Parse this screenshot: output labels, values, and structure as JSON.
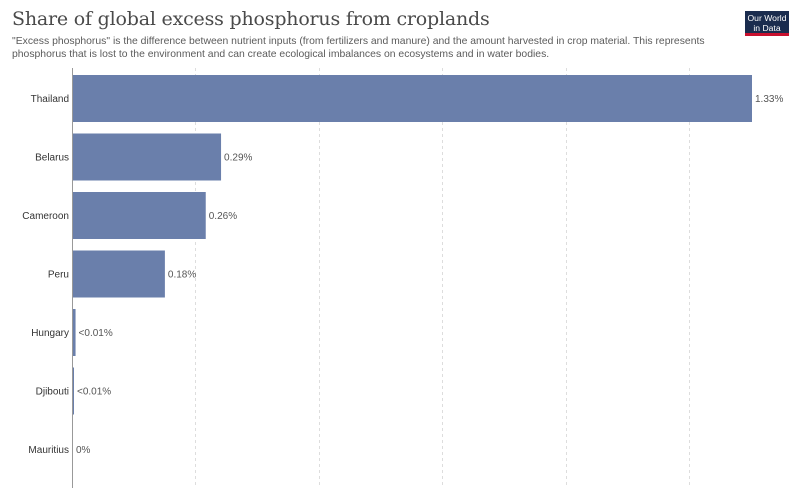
{
  "header": {
    "title": "Share of global excess phosphorus from croplands",
    "subtitle": "\"Excess phosphorus\" is the difference between nutrient inputs (from fertilizers and manure) and the amount harvested in crop material. This represents phosphorus that is lost to the environment and can create ecological imbalances on ecosystems and in water bodies.",
    "logo_line1": "Our World",
    "logo_line2": "in Data"
  },
  "chart_data": {
    "type": "bar",
    "orientation": "horizontal",
    "title": "Share of global excess phosphorus from croplands",
    "unit": "%",
    "categories": [
      "Thailand",
      "Belarus",
      "Cameroon",
      "Peru",
      "Hungary",
      "Djibouti",
      "Mauritius"
    ],
    "values": [
      1.33,
      0.29,
      0.26,
      0.18,
      0.005,
      0.001,
      0
    ],
    "value_labels": [
      "1.33%",
      "0.29%",
      "0.26%",
      "0.18%",
      "<0.01%",
      "<0.01%",
      "0%"
    ],
    "xlim": [
      0,
      1.33
    ],
    "grid": true,
    "bar_color": "#6a7fab",
    "grid_color": "#dddddd"
  }
}
